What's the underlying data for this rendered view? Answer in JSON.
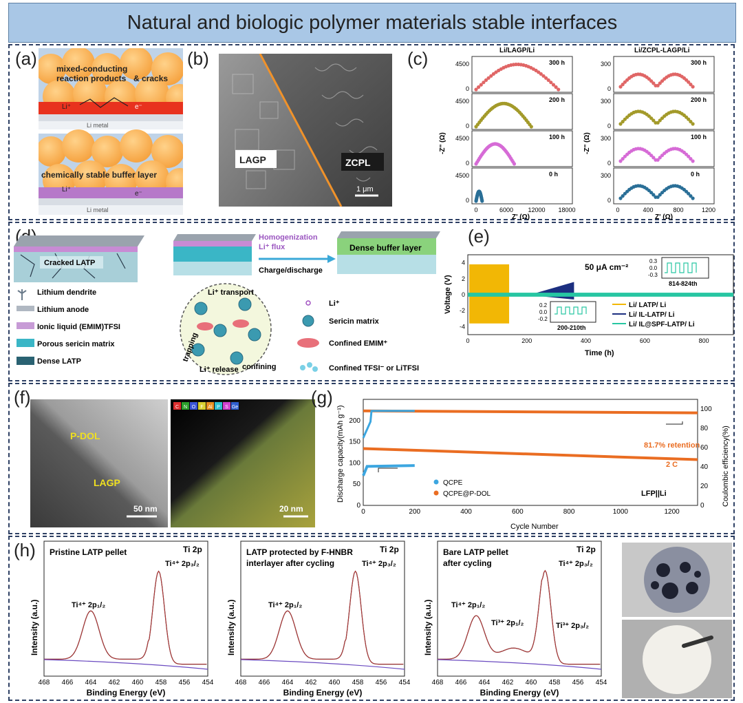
{
  "title": "Natural and biologic  polymer materials stable interfaces",
  "panels": {
    "a": {
      "label": "(a)",
      "top_text1": "mixed-conducting",
      "top_text2": "reaction products",
      "top_text3": "& cracks",
      "bottom_text": "chemically stable buffer layer",
      "li_ion": "Li⁺",
      "electron": "e⁻",
      "metal_top": "Li metal",
      "metal_bottom": "Li metal"
    },
    "b": {
      "label": "(b)",
      "left_text": "LAGP",
      "right_text": "ZCPL",
      "scalebar": "1 μm"
    },
    "c": {
      "label": "(c)",
      "left_title": "Li/LAGP/Li",
      "right_title": "Li/ZCPL-LAGP/Li",
      "ylabel": "-Z'' (Ω)",
      "xlabel": "Z' (Ω)",
      "times": [
        "300 h",
        "200 h",
        "100 h",
        "0 h"
      ],
      "left_yticks": [
        "4500",
        "0"
      ],
      "left_xticks": [
        "0",
        "6000",
        "12000",
        "18000"
      ],
      "right_yticks": [
        "300",
        "0"
      ],
      "right_xticks": [
        "0",
        "400",
        "800",
        "1200"
      ],
      "colors": [
        "#e06666",
        "#a39a2a",
        "#d66bd6",
        "#2a6f97"
      ]
    },
    "d": {
      "label": "(d)",
      "cracked": "Cracked LATP",
      "homog1": "Homogenization",
      "homog2": "Li⁺ flux",
      "charge": "Charge/discharge",
      "dense_buffer": "Dense buffer layer",
      "legend": [
        "Lithium dendrite",
        "Lithium anode",
        "Ionic liquid (EMIM)TFSI",
        "Porous sericin matrix",
        "Dense LATP"
      ],
      "legend2": [
        "Li⁺",
        "Sericin matrix",
        "Confined EMIM⁺",
        "Confined TFSI⁻ or LiTFSI"
      ],
      "li_transport": "Li⁺ transport",
      "trapping": "trapping",
      "release": "Li⁺ release",
      "confining": "confining"
    },
    "e": {
      "label": "(e)",
      "ylabel": "Voltage (V)",
      "xlabel": "Time (h)",
      "current": "50 μA cm⁻²",
      "yticks": [
        "4",
        "2",
        "0",
        "-2",
        "-4"
      ],
      "xticks": [
        "0",
        "200",
        "400",
        "600",
        "800"
      ],
      "inset1_range": "200-210th",
      "inset1_yticks": [
        "0.2",
        "0.0",
        "-0.2"
      ],
      "inset2_range": "814-824th",
      "inset2_yticks": [
        "0.3",
        "0.0",
        "-0.3"
      ],
      "legend": [
        "Li/ LATP/ Li",
        "Li/ IL-LATP/ Li",
        "Li/ IL@SPF-LATP/ Li"
      ],
      "legend_colors": [
        "#f2b705",
        "#1c2f80",
        "#27c6a2"
      ]
    },
    "f": {
      "label": "(f)",
      "pdol": "P-DOL",
      "lagp": "LAGP",
      "scale1": "50 nm",
      "scale2": "20 nm",
      "elements": [
        "C",
        "N",
        "O",
        "F",
        "Al",
        "P",
        "S",
        "Ge"
      ],
      "element_colors": [
        "#e03030",
        "#2b9f2b",
        "#3a55d8",
        "#d8d030",
        "#e89020",
        "#30c0d0",
        "#d040d0",
        "#2f5fd0"
      ]
    },
    "g": {
      "label": "(g)",
      "ylabel_left": "Discharge capacity(mAh g⁻¹)",
      "ylabel_right": "Coulombic efficiency(%)",
      "xlabel": "Cycle Number",
      "xticks": [
        "0",
        "200",
        "400",
        "600",
        "800",
        "1000",
        "1200"
      ],
      "yticks_left": [
        "0",
        "50",
        "100",
        "150",
        "200"
      ],
      "yticks_right": [
        "0",
        "20",
        "40",
        "60",
        "80",
        "100"
      ],
      "retention": "81.7% retention",
      "rate": "2 C",
      "cell": "LFP||Li",
      "legend": [
        "QCPE",
        "QCPE@P-DOL"
      ],
      "colors": [
        "#3ca6e0",
        "#ea6d22"
      ]
    },
    "h": {
      "label": "(h)",
      "xlabel": "Binding Energy (eV)",
      "ylabel": "Intensity (a.u.)",
      "xticks": [
        "468",
        "466",
        "464",
        "462",
        "460",
        "458",
        "456",
        "454"
      ],
      "p1_title": "Pristine LATP pellet",
      "p2_title1": "LATP protected by F-HNBR",
      "p2_title2": "interlayer after cycling",
      "p3_title1": "Bare LATP pellet",
      "p3_title2": "after cycling",
      "ti2p": "Ti 2p",
      "ti4_32": "Ti⁴⁺ 2p₃/₂",
      "ti4_12": "Ti⁴⁺ 2p₁/₂",
      "ti3_12": "Ti³⁺ 2p₁/₂",
      "ti3_32": "Ti³⁺ 2p₃/₂"
    }
  }
}
